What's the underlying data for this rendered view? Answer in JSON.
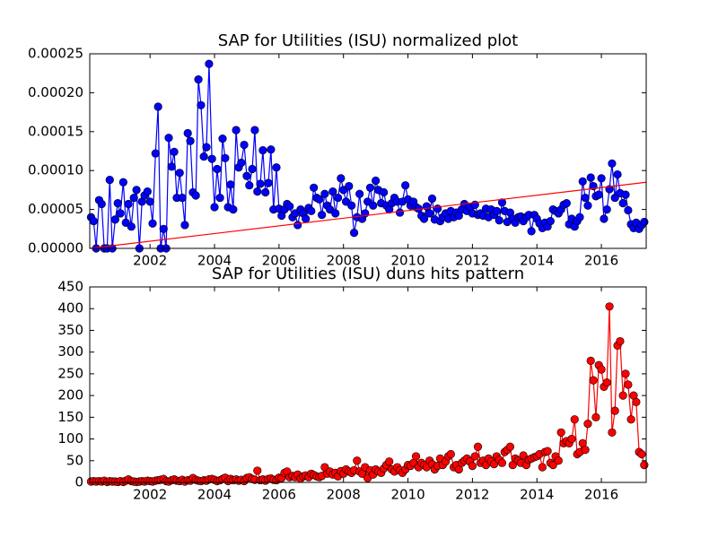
{
  "chart_data": [
    {
      "type": "line",
      "title": "SAP for Utilities (ISU) normalized plot",
      "x": [
        2000.17,
        2000.25,
        2000.33,
        2000.42,
        2000.5,
        2000.58,
        2000.67,
        2000.75,
        2000.83,
        2000.92,
        2001,
        2001.08,
        2001.17,
        2001.25,
        2001.33,
        2001.42,
        2001.5,
        2001.58,
        2001.67,
        2001.75,
        2001.83,
        2001.92,
        2002,
        2002.08,
        2002.17,
        2002.25,
        2002.33,
        2002.42,
        2002.5,
        2002.58,
        2002.67,
        2002.75,
        2002.83,
        2002.92,
        2003,
        2003.08,
        2003.17,
        2003.25,
        2003.33,
        2003.42,
        2003.5,
        2003.58,
        2003.67,
        2003.75,
        2003.83,
        2003.92,
        2004,
        2004.08,
        2004.17,
        2004.25,
        2004.33,
        2004.42,
        2004.5,
        2004.58,
        2004.67,
        2004.75,
        2004.83,
        2004.92,
        2005,
        2005.08,
        2005.17,
        2005.25,
        2005.33,
        2005.42,
        2005.5,
        2005.58,
        2005.67,
        2005.75,
        2005.83,
        2005.92,
        2006,
        2006.08,
        2006.17,
        2006.25,
        2006.33,
        2006.42,
        2006.5,
        2006.58,
        2006.67,
        2006.75,
        2006.83,
        2006.92,
        2007,
        2007.08,
        2007.17,
        2007.25,
        2007.33,
        2007.42,
        2007.5,
        2007.58,
        2007.67,
        2007.75,
        2007.83,
        2007.92,
        2008,
        2008.08,
        2008.17,
        2008.25,
        2008.33,
        2008.42,
        2008.5,
        2008.58,
        2008.67,
        2008.75,
        2008.83,
        2008.92,
        2009,
        2009.08,
        2009.17,
        2009.25,
        2009.33,
        2009.42,
        2009.5,
        2009.58,
        2009.67,
        2009.75,
        2009.83,
        2009.92,
        2010,
        2010.08,
        2010.17,
        2010.25,
        2010.33,
        2010.42,
        2010.5,
        2010.58,
        2010.67,
        2010.75,
        2010.83,
        2010.92,
        2011,
        2011.08,
        2011.17,
        2011.25,
        2011.33,
        2011.42,
        2011.5,
        2011.58,
        2011.67,
        2011.75,
        2011.83,
        2011.92,
        2012,
        2012.08,
        2012.17,
        2012.25,
        2012.33,
        2012.42,
        2012.5,
        2012.58,
        2012.67,
        2012.75,
        2012.83,
        2012.92,
        2013,
        2013.08,
        2013.17,
        2013.25,
        2013.33,
        2013.42,
        2013.5,
        2013.58,
        2013.67,
        2013.75,
        2013.83,
        2013.92,
        2014,
        2014.08,
        2014.17,
        2014.25,
        2014.33,
        2014.42,
        2014.5,
        2014.58,
        2014.67,
        2014.75,
        2014.83,
        2014.92,
        2015,
        2015.08,
        2015.17,
        2015.25,
        2015.33,
        2015.42,
        2015.5,
        2015.58,
        2015.67,
        2015.75,
        2015.83,
        2015.92,
        2016,
        2016.08,
        2016.17,
        2016.25,
        2016.33,
        2016.42,
        2016.5,
        2016.58,
        2016.67,
        2016.75,
        2016.83,
        2016.92,
        2017,
        2017.08,
        2017.17,
        2017.25,
        2017.33
      ],
      "xlim": [
        2000.13,
        2017.39
      ],
      "xticks": [
        2002,
        2004,
        2006,
        2008,
        2010,
        2012,
        2014,
        2016
      ],
      "ylim": [
        0,
        0.00025
      ],
      "yticks": [
        {
          "value": 0,
          "label": "0.00000"
        },
        {
          "value": 5e-05,
          "label": "0.00005"
        },
        {
          "value": 0.0001,
          "label": "0.00010"
        },
        {
          "value": 0.00015,
          "label": "0.00015"
        },
        {
          "value": 0.0002,
          "label": "0.00020"
        },
        {
          "value": 0.00025,
          "label": "0.00025"
        }
      ],
      "series": [
        {
          "color": "#0000ff",
          "marker": true,
          "values": [
            4e-05,
            3.5e-05,
            0,
            6.2e-05,
            5.7e-05,
            0,
            0,
            8.8e-05,
            0,
            3.7e-05,
            5.8e-05,
            4.5e-05,
            8.5e-05,
            3.3e-05,
            5.7e-05,
            2.8e-05,
            6.5e-05,
            7.5e-05,
            0,
            6e-05,
            6.8e-05,
            7.3e-05,
            6e-05,
            3.2e-05,
            0.000122,
            0.000182,
            0,
            2.5e-05,
            0,
            0.000142,
            0.000105,
            0.000124,
            6.5e-05,
            9.7e-05,
            6.5e-05,
            3e-05,
            0.000148,
            0.000138,
            7.2e-05,
            6.8e-05,
            0.000217,
            0.000184,
            0.000118,
            0.00013,
            0.000237,
            0.000115,
            5.3e-05,
            0.000102,
            6.5e-05,
            0.000141,
            0.000116,
            5.3e-05,
            8.2e-05,
            5e-05,
            0.000152,
            0.000104,
            0.00011,
            0.000133,
            9.3e-05,
            8.1e-05,
            0.000102,
            0.000152,
            7.3e-05,
            8.3e-05,
            0.000126,
            7.2e-05,
            8.4e-05,
            0.000127,
            5e-05,
            0.000104,
            5.1e-05,
            4.2e-05,
            5e-05,
            5.7e-05,
            5.4e-05,
            4e-05,
            4.5e-05,
            3e-05,
            5e-05,
            4.5e-05,
            3.8e-05,
            5.2e-05,
            4.8e-05,
            7.8e-05,
            6.5e-05,
            6.3e-05,
            4.3e-05,
            7e-05,
            5.5e-05,
            5e-05,
            7.3e-05,
            4.5e-05,
            6.5e-05,
            9e-05,
            7.5e-05,
            6e-05,
            8e-05,
            5.5e-05,
            2e-05,
            4e-05,
            7e-05,
            3.8e-05,
            4.5e-05,
            6e-05,
            7.8e-05,
            5.5e-05,
            8.7e-05,
            7.5e-05,
            5.8e-05,
            7.2e-05,
            5.5e-05,
            5e-05,
            5.8e-05,
            6.5e-05,
            6e-05,
            4.6e-05,
            6e-05,
            8.1e-05,
            6.3e-05,
            5.5e-05,
            6e-05,
            5.3e-05,
            5.1e-05,
            4.2e-05,
            3.8e-05,
            5.4e-05,
            4.5e-05,
            6.4e-05,
            3.7e-05,
            5.1e-05,
            3.5e-05,
            4e-05,
            4.5e-05,
            3.8e-05,
            4.8e-05,
            4e-05,
            4.6e-05,
            4.2e-05,
            5e-05,
            5.7e-05,
            4.8e-05,
            5.3e-05,
            4.5e-05,
            5.6e-05,
            4.3e-05,
            4.5e-05,
            4.2e-05,
            5.1e-05,
            4e-05,
            5e-05,
            4.3e-05,
            4.8e-05,
            3.6e-05,
            5.9e-05,
            4.8e-05,
            3.4e-05,
            4.6e-05,
            3.8e-05,
            3.3e-05,
            4e-05,
            4.1e-05,
            3.5e-05,
            4e-05,
            4.3e-05,
            2.2e-05,
            4.3e-05,
            3.8e-05,
            3.2e-05,
            2.6e-05,
            3.3e-05,
            2.8e-05,
            3.5e-05,
            5e-05,
            4.8e-05,
            4.5e-05,
            5e-05,
            5.6e-05,
            5.8e-05,
            3.1e-05,
            3.8e-05,
            2.8e-05,
            3.5e-05,
            4e-05,
            8.6e-05,
            6.5e-05,
            5.5e-05,
            9.1e-05,
            8e-05,
            6.7e-05,
            6.9e-05,
            9e-05,
            3.8e-05,
            5e-05,
            7.6e-05,
            0.000109,
            6.5e-05,
            9.5e-05,
            7.1e-05,
            5.8e-05,
            6.9e-05,
            4.9e-05,
            3.1e-05,
            2.6e-05,
            3.3e-05,
            2.5e-05,
            3e-05,
            3.4e-05
          ]
        },
        {
          "color": "#ff0000",
          "marker": false,
          "x": [
            2000.13,
            2017.39
          ],
          "values": [
            0,
            8.5e-05
          ]
        }
      ]
    },
    {
      "type": "line",
      "title": "SAP for Utilities (ISU) duns hits pattern",
      "x": [
        2000.17,
        2000.25,
        2000.33,
        2000.42,
        2000.5,
        2000.58,
        2000.67,
        2000.75,
        2000.83,
        2000.92,
        2001,
        2001.08,
        2001.17,
        2001.25,
        2001.33,
        2001.42,
        2001.5,
        2001.58,
        2001.67,
        2001.75,
        2001.83,
        2001.92,
        2002,
        2002.08,
        2002.17,
        2002.25,
        2002.33,
        2002.42,
        2002.5,
        2002.58,
        2002.67,
        2002.75,
        2002.83,
        2002.92,
        2003,
        2003.08,
        2003.17,
        2003.25,
        2003.33,
        2003.42,
        2003.5,
        2003.58,
        2003.67,
        2003.75,
        2003.83,
        2003.92,
        2004,
        2004.08,
        2004.17,
        2004.25,
        2004.33,
        2004.42,
        2004.5,
        2004.58,
        2004.67,
        2004.75,
        2004.83,
        2004.92,
        2005,
        2005.08,
        2005.17,
        2005.25,
        2005.33,
        2005.42,
        2005.5,
        2005.58,
        2005.67,
        2005.75,
        2005.83,
        2005.92,
        2006,
        2006.08,
        2006.17,
        2006.25,
        2006.33,
        2006.42,
        2006.5,
        2006.58,
        2006.67,
        2006.75,
        2006.83,
        2006.92,
        2007,
        2007.08,
        2007.17,
        2007.25,
        2007.33,
        2007.42,
        2007.5,
        2007.58,
        2007.67,
        2007.75,
        2007.83,
        2007.92,
        2008,
        2008.08,
        2008.17,
        2008.25,
        2008.33,
        2008.42,
        2008.5,
        2008.58,
        2008.67,
        2008.75,
        2008.83,
        2008.92,
        2009,
        2009.08,
        2009.17,
        2009.25,
        2009.33,
        2009.42,
        2009.5,
        2009.58,
        2009.67,
        2009.75,
        2009.83,
        2009.92,
        2010,
        2010.08,
        2010.17,
        2010.25,
        2010.33,
        2010.42,
        2010.5,
        2010.58,
        2010.67,
        2010.75,
        2010.83,
        2010.92,
        2011,
        2011.08,
        2011.17,
        2011.25,
        2011.33,
        2011.42,
        2011.5,
        2011.58,
        2011.67,
        2011.75,
        2011.83,
        2011.92,
        2012,
        2012.08,
        2012.17,
        2012.25,
        2012.33,
        2012.42,
        2012.5,
        2012.58,
        2012.67,
        2012.75,
        2012.83,
        2012.92,
        2013,
        2013.08,
        2013.17,
        2013.25,
        2013.33,
        2013.42,
        2013.5,
        2013.58,
        2013.67,
        2013.75,
        2013.83,
        2013.92,
        2014,
        2014.08,
        2014.17,
        2014.25,
        2014.33,
        2014.42,
        2014.5,
        2014.58,
        2014.67,
        2014.75,
        2014.83,
        2014.92,
        2015,
        2015.08,
        2015.17,
        2015.25,
        2015.33,
        2015.42,
        2015.5,
        2015.58,
        2015.67,
        2015.75,
        2015.83,
        2015.92,
        2016,
        2016.08,
        2016.17,
        2016.25,
        2016.33,
        2016.42,
        2016.5,
        2016.58,
        2016.67,
        2016.75,
        2016.83,
        2016.92,
        2017,
        2017.08,
        2017.17,
        2017.25,
        2017.33
      ],
      "xlim": [
        2000.13,
        2017.39
      ],
      "xticks": [
        2002,
        2004,
        2006,
        2008,
        2010,
        2012,
        2014,
        2016
      ],
      "ylim": [
        0,
        450
      ],
      "yticks": [
        0,
        50,
        100,
        150,
        200,
        250,
        300,
        350,
        400,
        450
      ],
      "series": [
        {
          "color": "#ff0000",
          "marker": true,
          "values": [
            2,
            3,
            2,
            3,
            2,
            4,
            1,
            3,
            2,
            2,
            1,
            3,
            1,
            4,
            7,
            3,
            2,
            1,
            2,
            3,
            2,
            4,
            3,
            2,
            4,
            5,
            6,
            8,
            3,
            2,
            5,
            7,
            4,
            3,
            6,
            2,
            5,
            4,
            10,
            6,
            4,
            3,
            5,
            4,
            7,
            8,
            6,
            3,
            5,
            8,
            11,
            3,
            8,
            5,
            7,
            4,
            6,
            3,
            10,
            12,
            8,
            6,
            27,
            5,
            7,
            4,
            8,
            9,
            6,
            5,
            11,
            10,
            22,
            25,
            12,
            15,
            12,
            18,
            9,
            14,
            16,
            12,
            20,
            17,
            14,
            12,
            15,
            35,
            20,
            25,
            18,
            22,
            14,
            26,
            20,
            30,
            25,
            22,
            28,
            50,
            25,
            20,
            35,
            10,
            28,
            18,
            30,
            25,
            22,
            32,
            40,
            48,
            30,
            25,
            35,
            28,
            22,
            30,
            40,
            38,
            45,
            60,
            35,
            45,
            40,
            35,
            50,
            42,
            30,
            38,
            55,
            40,
            48,
            60,
            65,
            35,
            40,
            30,
            45,
            50,
            55,
            48,
            38,
            60,
            82,
            45,
            50,
            40,
            55,
            48,
            42,
            60,
            52,
            45,
            70,
            75,
            82,
            40,
            55,
            50,
            45,
            62,
            40,
            52,
            55,
            58,
            60,
            65,
            35,
            70,
            72,
            45,
            40,
            60,
            50,
            115,
            90,
            95,
            90,
            100,
            145,
            65,
            70,
            90,
            75,
            135,
            280,
            235,
            150,
            270,
            260,
            220,
            230,
            405,
            115,
            165,
            315,
            325,
            200,
            250,
            225,
            145,
            200,
            185,
            70,
            65,
            40
          ]
        }
      ]
    }
  ]
}
